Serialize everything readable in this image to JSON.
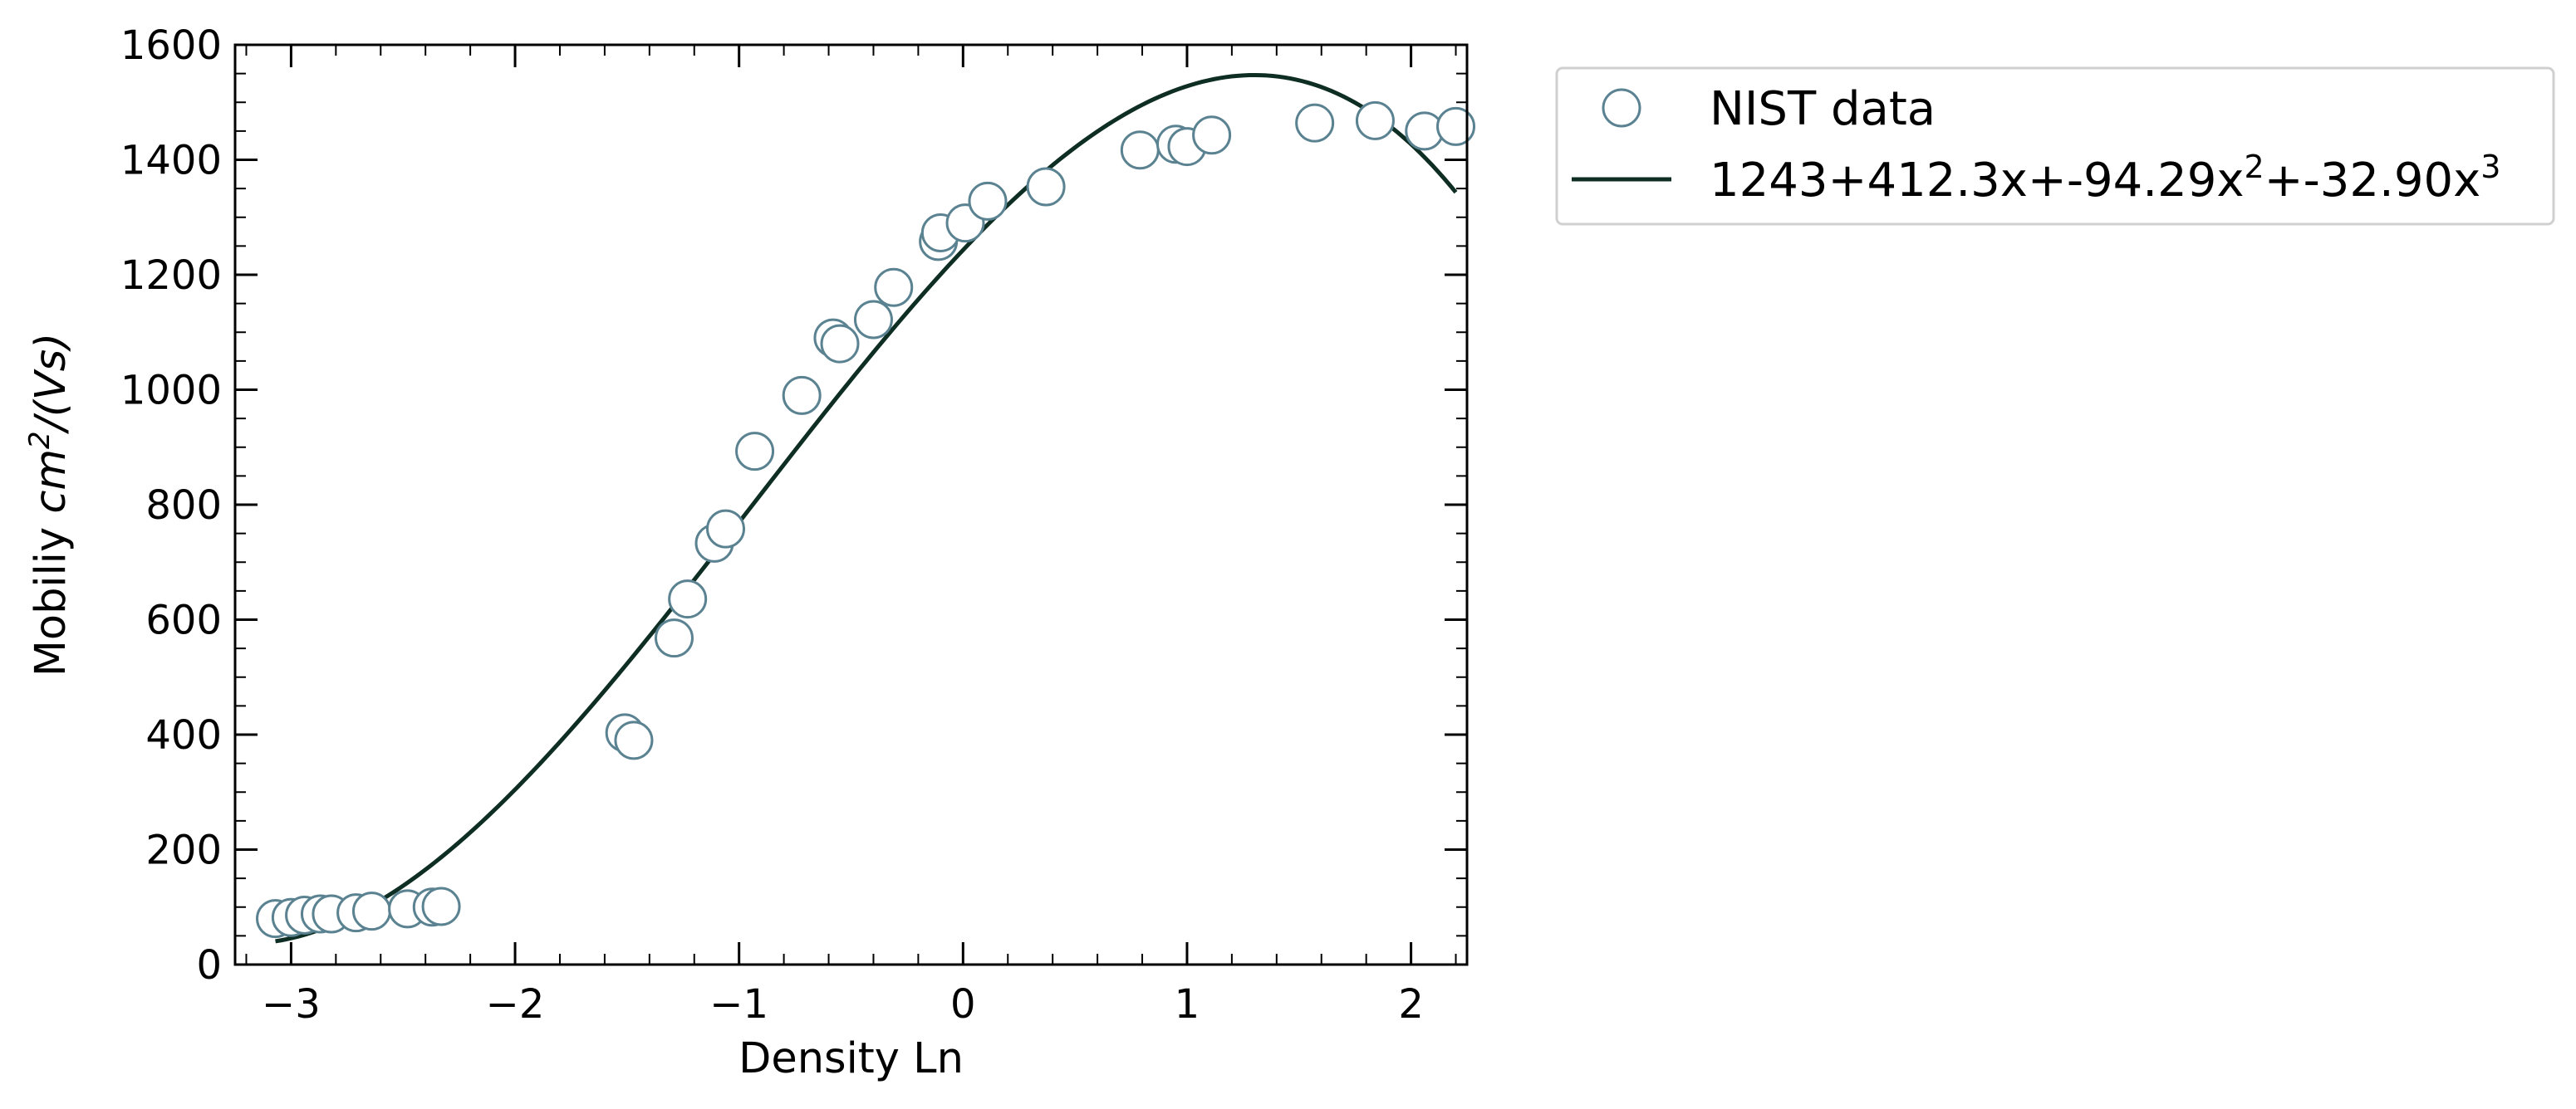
{
  "chart_data": {
    "type": "scatter",
    "xlabel": "Density Ln",
    "ylabel": {
      "prefix": "Mobiliy ",
      "unit_base": "cm",
      "unit_exp": "2",
      "unit_rest": "/(Vs)"
    },
    "xlim": [
      -3.25,
      2.25
    ],
    "ylim": [
      0,
      1600
    ],
    "x_ticks": [
      -3,
      -2,
      -1,
      0,
      1,
      2
    ],
    "x_tick_labels": [
      "−3",
      "−2",
      "−1",
      "0",
      "1",
      "2"
    ],
    "y_ticks": [
      0,
      200,
      400,
      600,
      800,
      1000,
      1200,
      1400,
      1600
    ],
    "y_tick_labels": [
      "0",
      "200",
      "400",
      "600",
      "800",
      "1000",
      "1200",
      "1400",
      "1600"
    ],
    "x_minor_step": 0.2,
    "y_minor_step": 50,
    "grid": false,
    "legend_position": "outside-top-right",
    "series": [
      {
        "name": "NIST data",
        "kind": "scatter",
        "marker": "open-circle",
        "color": "#5a8291",
        "points": [
          [
            -3.07,
            80
          ],
          [
            -3.0,
            82
          ],
          [
            -2.94,
            86
          ],
          [
            -2.87,
            88
          ],
          [
            -2.82,
            88
          ],
          [
            -2.71,
            90
          ],
          [
            -2.64,
            93
          ],
          [
            -2.48,
            97
          ],
          [
            -2.37,
            100
          ],
          [
            -2.33,
            101
          ],
          [
            -1.51,
            403
          ],
          [
            -1.47,
            390
          ],
          [
            -1.29,
            568
          ],
          [
            -1.23,
            636
          ],
          [
            -1.11,
            733
          ],
          [
            -1.06,
            758
          ],
          [
            -0.93,
            893
          ],
          [
            -0.72,
            990
          ],
          [
            -0.58,
            1090
          ],
          [
            -0.55,
            1080
          ],
          [
            -0.4,
            1122
          ],
          [
            -0.31,
            1178
          ],
          [
            -0.11,
            1258
          ],
          [
            -0.1,
            1273
          ],
          [
            0.01,
            1290
          ],
          [
            0.11,
            1328
          ],
          [
            0.37,
            1353
          ],
          [
            0.79,
            1417
          ],
          [
            0.95,
            1427
          ],
          [
            1.0,
            1423
          ],
          [
            1.11,
            1443
          ],
          [
            1.57,
            1464
          ],
          [
            1.84,
            1468
          ],
          [
            2.06,
            1450
          ],
          [
            2.2,
            1458
          ]
        ]
      },
      {
        "name_base": "1243+412.3x+-94.29x",
        "name_exp1": "2",
        "name_mid": "+-32.90x",
        "name_exp2": "3",
        "kind": "line",
        "color": "#0e2e23",
        "coefficients": [
          1243,
          412.3,
          -94.29,
          -32.9
        ],
        "x_domain": [
          -3.07,
          2.2
        ]
      }
    ]
  }
}
